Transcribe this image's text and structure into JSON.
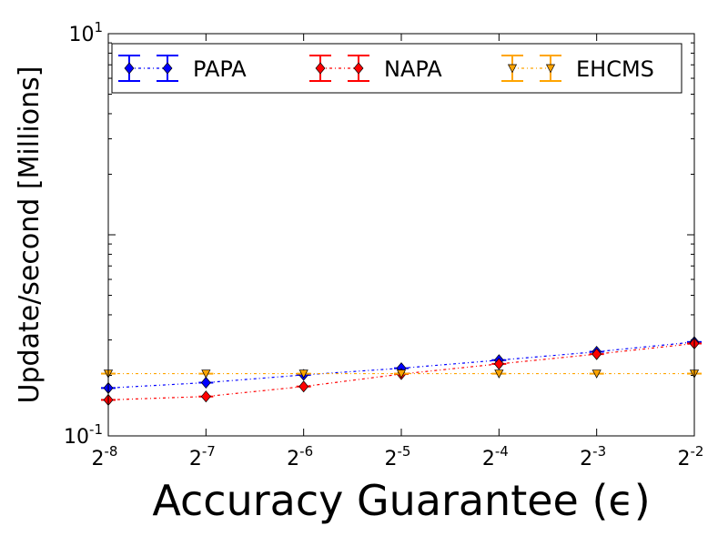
{
  "chart_data": {
    "type": "line",
    "xlabel": "Accuracy Guarantee (ϵ)",
    "ylabel": "Update/second [Millions]",
    "x": [
      "2^-8",
      "2^-7",
      "2^-6",
      "2^-5",
      "2^-4",
      "2^-3",
      "2^-2"
    ],
    "x_exponents": [
      -8,
      -7,
      -6,
      -5,
      -4,
      -3,
      -2
    ],
    "x_tick_labels": [
      {
        "base": "2",
        "exp": "-8"
      },
      {
        "base": "2",
        "exp": "-7"
      },
      {
        "base": "2",
        "exp": "-6"
      },
      {
        "base": "2",
        "exp": "-5"
      },
      {
        "base": "2",
        "exp": "-4"
      },
      {
        "base": "2",
        "exp": "-3"
      },
      {
        "base": "2",
        "exp": "-2"
      }
    ],
    "y_scale": "log",
    "ylim": [
      0.1,
      10
    ],
    "y_tick_labels": [
      {
        "value": 0.1,
        "base": "10",
        "exp": "-1"
      },
      {
        "value": 10,
        "base": "10",
        "exp": "1"
      }
    ],
    "grid": false,
    "legend_position": "top",
    "series": [
      {
        "name": "PAPA",
        "color": "#0000ff",
        "marker": "diamond",
        "values": [
          0.173,
          0.184,
          0.201,
          0.217,
          0.238,
          0.262,
          0.293
        ]
      },
      {
        "name": "NAPA",
        "color": "#ff0000",
        "marker": "diamond",
        "values": [
          0.151,
          0.157,
          0.176,
          0.203,
          0.228,
          0.255,
          0.288
        ]
      },
      {
        "name": "EHCMS",
        "color": "#ffa500",
        "marker": "triangle-down",
        "values": [
          0.204,
          0.204,
          0.204,
          0.204,
          0.204,
          0.204,
          0.204
        ]
      }
    ]
  }
}
